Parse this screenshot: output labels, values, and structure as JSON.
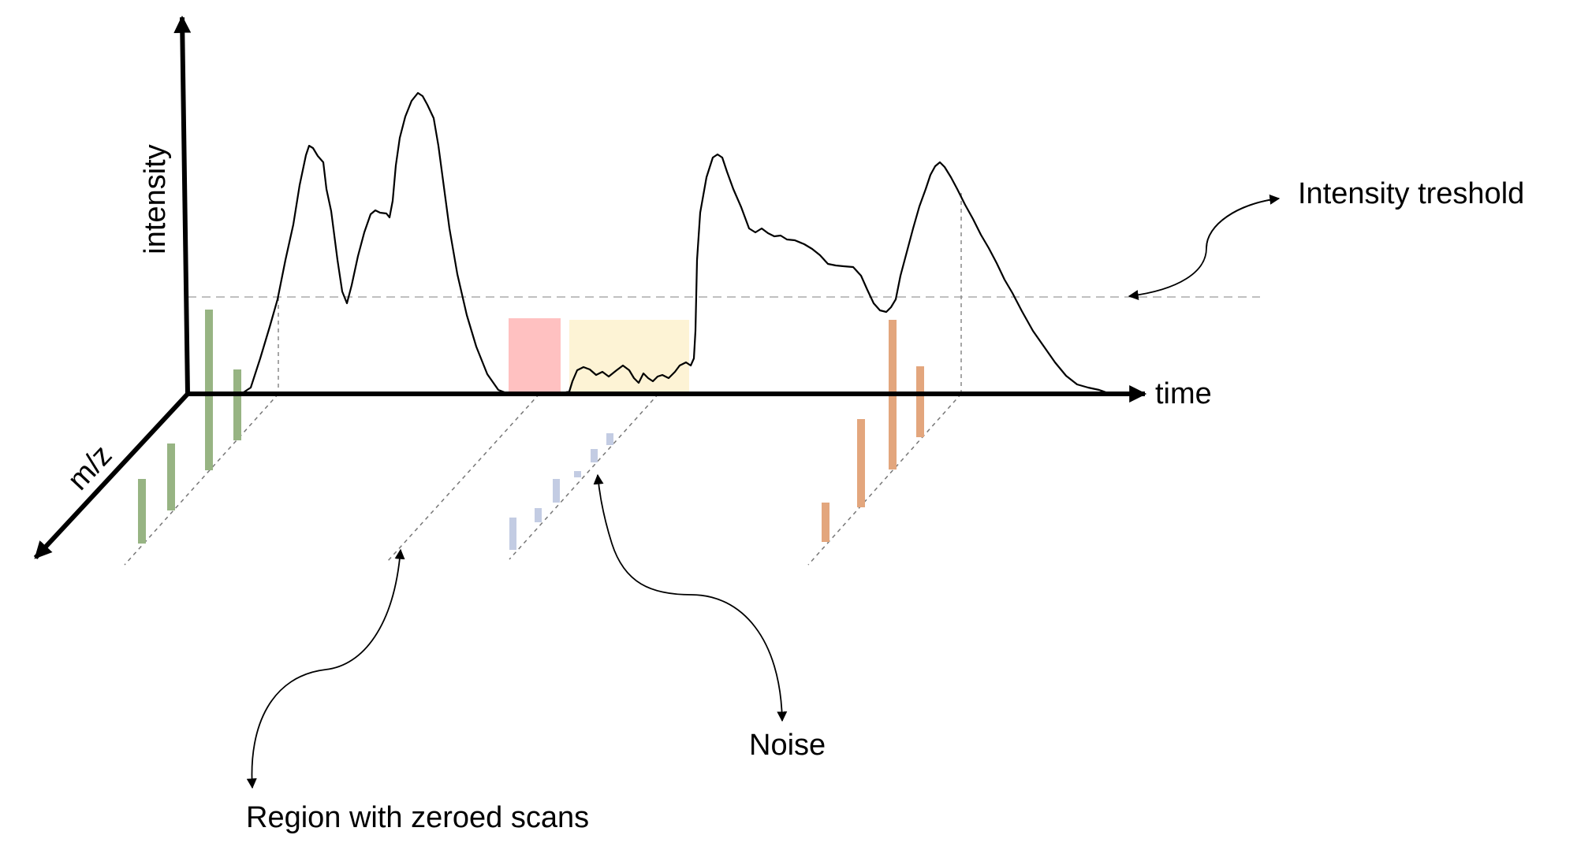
{
  "axes": {
    "y_label": "intensity",
    "x_label": "time",
    "z_label": "m/z"
  },
  "annotations": {
    "threshold": "Intensity treshold",
    "noise": "Noise",
    "zeroed": "Region with zeroed scans"
  },
  "colors": {
    "axis": "#000000",
    "curve": "#000000",
    "threshold_line": "#c0c0c0",
    "guide_line": "#888888",
    "green_bars": "#97b483",
    "blue_bars": "#c3cce3",
    "orange_bars": "#e3a67d",
    "zeroed_region": "#ffc1c1",
    "noise_region": "#fdf3d5"
  },
  "icons": {
    "axis_arrowhead": "arrowhead",
    "annotation_arrowhead": "small-arrowhead"
  }
}
